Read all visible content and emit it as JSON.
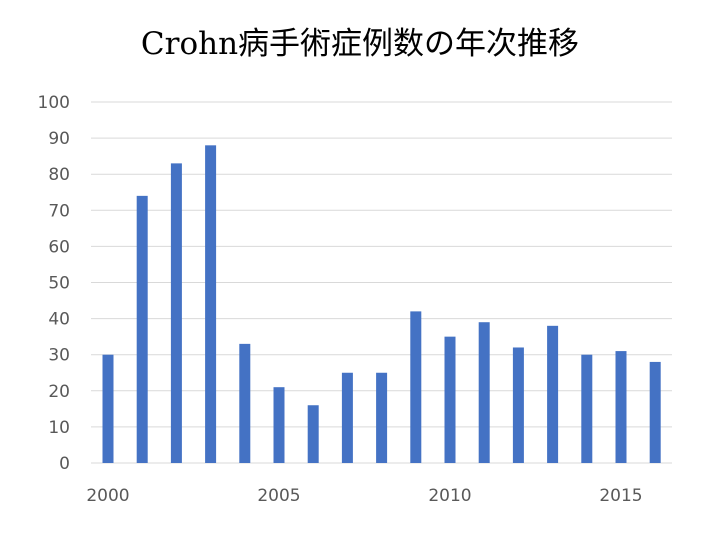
{
  "chart_data": {
    "type": "bar",
    "title": "Crohn病手術症例数の年次推移",
    "xlabel": "",
    "ylabel": "",
    "x": [
      2000,
      2001,
      2002,
      2003,
      2004,
      2005,
      2006,
      2007,
      2008,
      2009,
      2010,
      2011,
      2012,
      2013,
      2014,
      2015,
      2016
    ],
    "values": [
      30,
      74,
      83,
      88,
      33,
      21,
      16,
      25,
      25,
      42,
      35,
      39,
      32,
      38,
      30,
      31,
      28
    ],
    "ylim": [
      0,
      100
    ],
    "yticks": [
      "0",
      "10",
      "20",
      "30",
      "40",
      "50",
      "60",
      "70",
      "80",
      "90",
      "100"
    ],
    "xticks": [
      {
        "x": 2000,
        "label": "2000"
      },
      {
        "x": 2005,
        "label": "2005"
      },
      {
        "x": 2010,
        "label": "2010"
      },
      {
        "x": 2015,
        "label": "2015"
      }
    ],
    "grid": true,
    "legend": "none",
    "bar_color": "#4472c4",
    "grid_color": "#d9d9d9"
  }
}
